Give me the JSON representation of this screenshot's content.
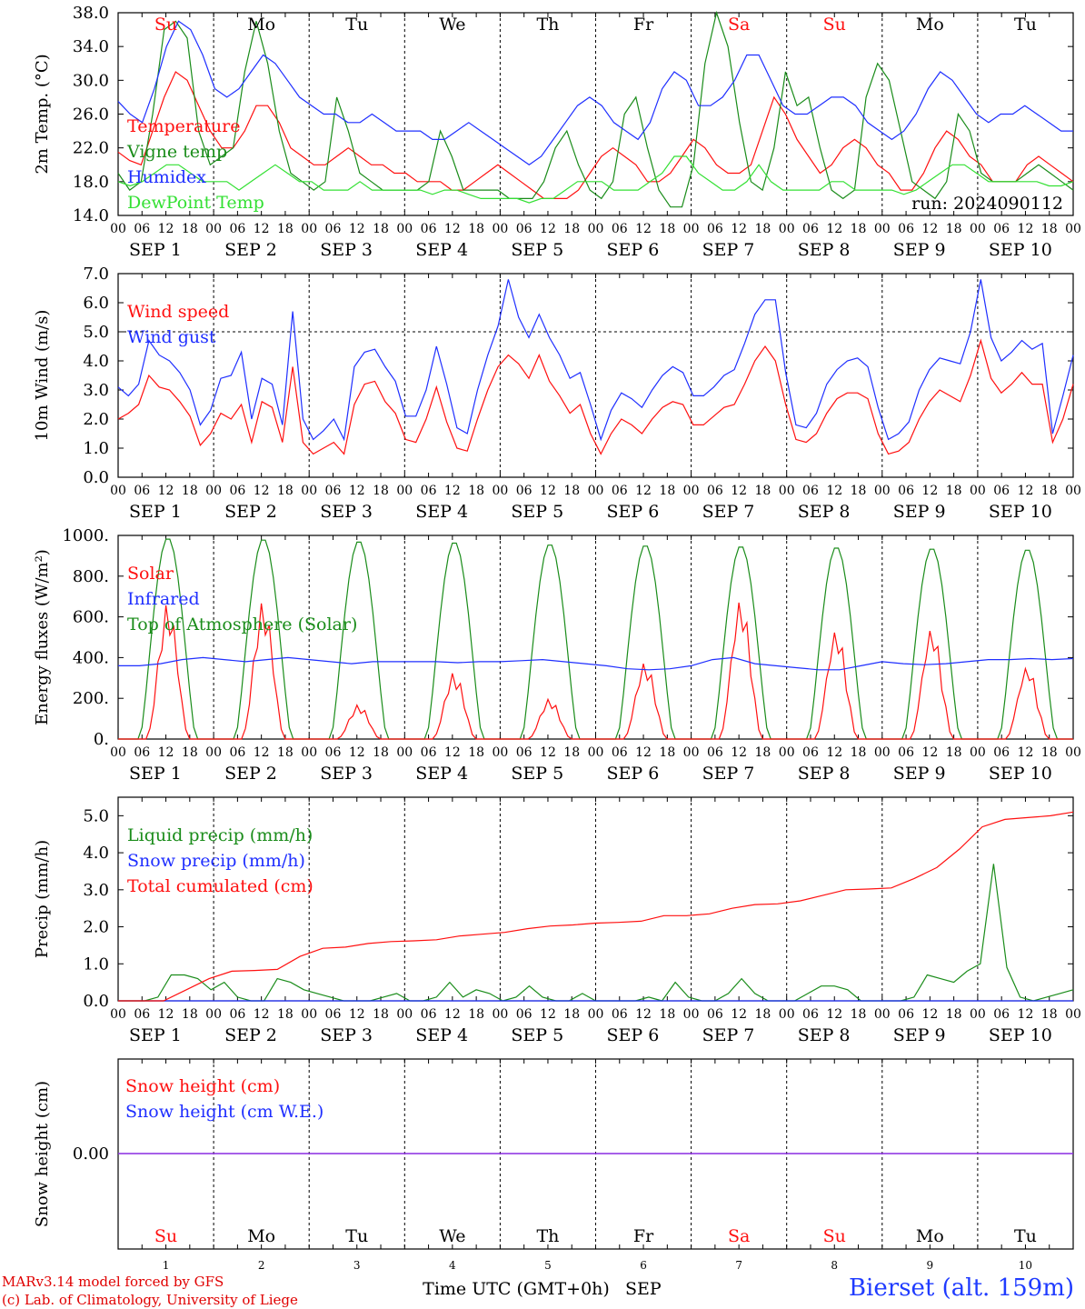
{
  "days": [
    "Su",
    "Mo",
    "Tu",
    "We",
    "Th",
    "Fr",
    "Sa",
    "Su",
    "Mo",
    "Tu"
  ],
  "weekend_flags": [
    true,
    false,
    false,
    false,
    false,
    false,
    true,
    true,
    false,
    false
  ],
  "date_labels": [
    "SEP  1",
    "SEP  2",
    "SEP  3",
    "SEP  4",
    "SEP  5",
    "SEP  6",
    "SEP  7",
    "SEP  8",
    "SEP  9",
    "SEP 10"
  ],
  "hour_ticks": [
    "00",
    "06",
    "12",
    "18"
  ],
  "day_numbers": [
    "1",
    "2",
    "3",
    "4",
    "5",
    "6",
    "7",
    "8",
    "9",
    "10"
  ],
  "colors": {
    "red": "#ff1010",
    "green": "#1a8c1a",
    "blue": "#1f2fff",
    "lightgreen": "#33e033",
    "purple": "#8a2be2",
    "weekend": "#ff1010"
  },
  "run_label": "run: 2024090112",
  "xlabel": "Time UTC (GMT+0h)",
  "xlabel_month": "SEP",
  "credits": [
    "MARv3.14 model forced by GFS",
    "(c) Lab. of Climatology, University of Liege"
  ],
  "station": "Bierset (alt. 159m)",
  "chart_data": [
    {
      "type": "line",
      "ylabel": "2m Temp. (°C)",
      "ylim": [
        14,
        38
      ],
      "yticks": [
        "14.0",
        "18.0",
        "22.0",
        "26.0",
        "30.0",
        "34.0",
        "38.0"
      ],
      "x_hours_step": 6,
      "series": [
        {
          "name": "Temperature",
          "color": "red",
          "values": [
            21.5,
            20.5,
            20,
            24,
            28,
            31,
            30,
            27,
            24,
            22,
            22,
            24,
            27,
            27,
            25,
            22,
            21,
            20,
            20,
            21,
            22,
            21,
            20,
            20,
            19,
            19,
            18,
            18,
            18,
            17,
            17,
            18,
            19,
            20,
            19,
            18,
            17,
            16,
            16,
            16,
            17,
            19,
            21,
            22,
            21,
            20,
            18,
            18,
            19,
            21,
            23,
            22,
            20,
            19,
            19,
            20,
            24,
            28,
            26,
            23,
            21,
            19,
            20,
            22,
            23,
            22,
            20,
            19,
            17,
            17,
            19,
            22,
            24,
            23,
            21,
            20,
            18,
            18,
            18,
            20,
            21,
            20,
            19,
            18
          ]
        },
        {
          "name": "Vigne temp",
          "color": "green",
          "values": [
            19,
            17,
            18,
            26,
            36,
            37,
            35,
            24,
            20,
            21,
            22,
            31,
            37,
            32,
            24,
            19,
            18,
            17,
            18,
            28,
            24,
            19,
            18,
            17,
            17,
            17,
            17,
            18,
            24,
            21,
            17,
            17,
            17,
            17,
            16,
            16,
            16,
            18,
            22,
            24,
            20,
            17,
            16,
            18,
            26,
            28,
            22,
            17,
            15,
            15,
            20,
            32,
            38,
            34,
            25,
            18,
            17,
            22,
            31,
            27,
            28,
            22,
            17,
            16,
            17,
            28,
            32,
            30,
            24,
            18,
            17,
            16,
            18,
            26,
            24,
            19,
            18,
            18,
            18,
            19,
            20,
            19,
            18,
            17
          ]
        },
        {
          "name": "Humidex",
          "color": "blue",
          "values": [
            27.5,
            26,
            25,
            29,
            34,
            37,
            36,
            33,
            29,
            28,
            29,
            31,
            33,
            32,
            30,
            28,
            27,
            26,
            26,
            25,
            25,
            26,
            25,
            24,
            24,
            24,
            23,
            23,
            24,
            25,
            24,
            23,
            22,
            21,
            20,
            21,
            23,
            25,
            27,
            28,
            27,
            25,
            24,
            23,
            25,
            29,
            31,
            30,
            27,
            27,
            28,
            30,
            33,
            33,
            30,
            27,
            26,
            26,
            27,
            28,
            28,
            27,
            25,
            24,
            23,
            24,
            26,
            29,
            31,
            30,
            28,
            26,
            25,
            26,
            26,
            27,
            26,
            25,
            24,
            24
          ]
        },
        {
          "name": "DewPoint Temp",
          "color": "lightgreen",
          "values": [
            18,
            17.5,
            18,
            19,
            20,
            20,
            19,
            18,
            18,
            18,
            17,
            18,
            19,
            20,
            19,
            18,
            18,
            17,
            17,
            17,
            18,
            17,
            17,
            17,
            17,
            17,
            16.5,
            17,
            17,
            16.5,
            16,
            16,
            16,
            16,
            15.5,
            16,
            16,
            17,
            18,
            18,
            18,
            17,
            17,
            17,
            18,
            19,
            21,
            21,
            19,
            18,
            17,
            17,
            18,
            20,
            18,
            17,
            17,
            17,
            17,
            18,
            18,
            17,
            17,
            17,
            17,
            16.5,
            17,
            18,
            19,
            20,
            20,
            19,
            18,
            18,
            18,
            18,
            18,
            17.5,
            17.5,
            18
          ]
        }
      ]
    },
    {
      "type": "line",
      "ylabel": "10m Wind (m/s)",
      "ylim": [
        0,
        7
      ],
      "yticks": [
        "0.0",
        "1.0",
        "2.0",
        "3.0",
        "4.0",
        "5.0",
        "6.0",
        "7.0"
      ],
      "ref_line": 5,
      "series": [
        {
          "name": "Wind speed",
          "color": "red",
          "values": [
            2,
            2.2,
            2.5,
            3.5,
            3.1,
            3.0,
            2.6,
            2.1,
            1.1,
            1.5,
            2.2,
            2.0,
            2.5,
            1.2,
            2.6,
            2.4,
            1.2,
            3.8,
            1.2,
            0.8,
            1.0,
            1.2,
            0.8,
            2.5,
            3.2,
            3.3,
            2.6,
            2.2,
            1.3,
            1.2,
            2.0,
            3.1,
            1.9,
            1.0,
            0.9,
            2.0,
            3.0,
            3.8,
            4.2,
            3.9,
            3.4,
            4.2,
            3.3,
            2.8,
            2.2,
            2.5,
            1.5,
            0.8,
            1.5,
            2.0,
            1.8,
            1.5,
            2.0,
            2.4,
            2.6,
            2.5,
            1.8,
            1.8,
            2.1,
            2.4,
            2.5,
            3.2,
            4.0,
            4.5,
            4.0,
            2.5,
            1.3,
            1.2,
            1.5,
            2.2,
            2.7,
            2.9,
            2.9,
            2.7,
            1.5,
            0.8,
            0.9,
            1.2,
            2.0,
            2.6,
            3.0,
            2.8,
            2.6,
            3.5,
            4.7,
            3.4,
            2.9,
            3.2,
            3.6,
            3.2,
            3.2,
            1.2,
            2.0,
            3.2
          ]
        },
        {
          "name": "Wind gust",
          "color": "blue",
          "values": [
            3.1,
            2.8,
            3.2,
            4.7,
            4.2,
            4.0,
            3.6,
            3.0,
            1.8,
            2.3,
            3.4,
            3.5,
            4.3,
            2.0,
            3.4,
            3.2,
            1.8,
            5.7,
            2.0,
            1.3,
            1.6,
            2.0,
            1.3,
            3.8,
            4.3,
            4.4,
            3.8,
            3.3,
            2.1,
            2.1,
            3.0,
            4.5,
            3.2,
            1.7,
            1.5,
            3.0,
            4.2,
            5.2,
            6.8,
            5.5,
            4.8,
            5.6,
            4.8,
            4.2,
            3.4,
            3.6,
            2.5,
            1.3,
            2.3,
            2.9,
            2.7,
            2.4,
            3.0,
            3.5,
            3.8,
            3.6,
            2.8,
            2.8,
            3.1,
            3.5,
            3.7,
            4.6,
            5.6,
            6.1,
            6.1,
            3.6,
            1.8,
            1.7,
            2.2,
            3.2,
            3.7,
            4.0,
            4.1,
            3.8,
            2.4,
            1.3,
            1.5,
            1.9,
            3.0,
            3.7,
            4.1,
            4.0,
            3.9,
            5.0,
            6.8,
            4.8,
            4.0,
            4.3,
            4.7,
            4.4,
            4.6,
            1.5,
            2.8,
            4.2
          ]
        }
      ]
    },
    {
      "type": "line",
      "ylabel": "Energy fluxes (W/m²)",
      "ylim": [
        0,
        1000
      ],
      "yticks": [
        "0.",
        "200.",
        "400.",
        "600.",
        "800.",
        "1000."
      ],
      "series": [
        {
          "name": "Solar",
          "color": "red",
          "peaks": [
            670,
            680,
            170,
            330,
            200,
            380,
            690,
            540,
            550,
            360
          ]
        },
        {
          "name": "Infrared",
          "color": "blue",
          "values": [
            360,
            360,
            370,
            390,
            400,
            390,
            380,
            390,
            400,
            390,
            380,
            370,
            380,
            380,
            380,
            380,
            375,
            380,
            380,
            385,
            390,
            380,
            370,
            360,
            345,
            340,
            345,
            360,
            390,
            400,
            370,
            360,
            350,
            340,
            340,
            360,
            380,
            370,
            365,
            370,
            380,
            390,
            390,
            395,
            390,
            395
          ]
        },
        {
          "name": "Top of Atmosphere (Solar)",
          "color": "green",
          "peaks": [
            990,
            985,
            975,
            970,
            960,
            955,
            950,
            945,
            940,
            935
          ]
        }
      ]
    },
    {
      "type": "line",
      "ylabel": "Precip (mm/h)",
      "ylim": [
        0,
        5.5
      ],
      "yticks": [
        "0.0",
        "1.0",
        "2.0",
        "3.0",
        "4.0",
        "5.0"
      ],
      "series": [
        {
          "name": "Liquid precip (mm/h)",
          "color": "green",
          "values": [
            0,
            0,
            0,
            0.1,
            0.7,
            0.7,
            0.6,
            0.3,
            0.5,
            0.1,
            0,
            0,
            0.6,
            0.5,
            0.3,
            0.2,
            0.1,
            0,
            0,
            0,
            0.1,
            0.2,
            0,
            0,
            0.1,
            0.5,
            0.1,
            0.3,
            0.2,
            0,
            0.1,
            0.4,
            0.1,
            0,
            0,
            0.2,
            0,
            0,
            0,
            0,
            0.1,
            0,
            0.5,
            0.1,
            0,
            0,
            0.2,
            0.6,
            0.2,
            0,
            0,
            0,
            0.2,
            0.4,
            0.4,
            0.3,
            0,
            0,
            0,
            0,
            0.1,
            0.7,
            0.6,
            0.5,
            0.8,
            1.0,
            3.7,
            0.9,
            0.1,
            0,
            0.1,
            0.2,
            0.3
          ]
        },
        {
          "name": "Snow precip (mm/h)",
          "color": "blue",
          "values": [
            0,
            0
          ]
        },
        {
          "name": "Total cumulated (cm)",
          "color": "red",
          "values": [
            0,
            0,
            0,
            0.3,
            0.6,
            0.8,
            0.82,
            0.85,
            1.2,
            1.42,
            1.45,
            1.55,
            1.6,
            1.62,
            1.65,
            1.75,
            1.8,
            1.85,
            1.95,
            2.02,
            2.05,
            2.1,
            2.12,
            2.15,
            2.3,
            2.3,
            2.35,
            2.5,
            2.6,
            2.62,
            2.7,
            2.85,
            3.0,
            3.02,
            3.05,
            3.3,
            3.6,
            4.1,
            4.7,
            4.9,
            4.95,
            5.0,
            5.1
          ]
        }
      ]
    },
    {
      "type": "line",
      "ylabel": "Snow height (cm)",
      "yticks": [
        "0.00"
      ],
      "series": [
        {
          "name": "Snow height (cm)",
          "color": "red",
          "values": [
            0,
            0
          ]
        },
        {
          "name": "Snow height (cm W.E.)",
          "color": "blue",
          "values": [
            0,
            0
          ]
        }
      ]
    }
  ]
}
